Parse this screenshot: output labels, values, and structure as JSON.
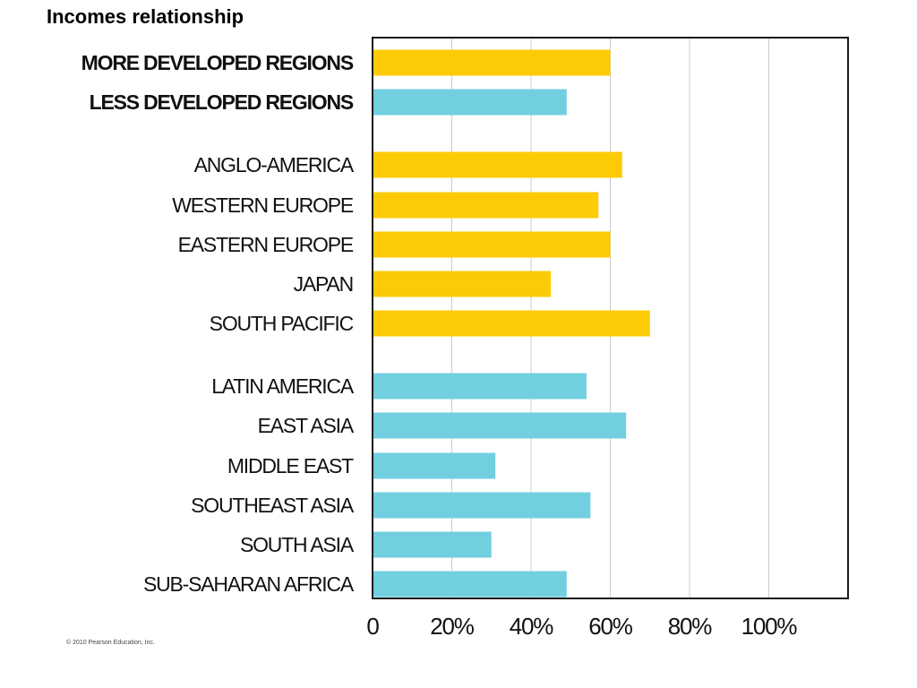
{
  "page": {
    "title": "Incomes relationship",
    "copyright": "© 2010 Pearson Education, Inc."
  },
  "chart_data": {
    "type": "bar",
    "orientation": "horizontal",
    "title": "",
    "xlabel": "",
    "ylabel": "",
    "xlim": [
      0,
      120
    ],
    "x_ticks": [
      {
        "value": 0,
        "label": "0"
      },
      {
        "value": 20,
        "label": "20%"
      },
      {
        "value": 40,
        "label": "40%"
      },
      {
        "value": 60,
        "label": "60%"
      },
      {
        "value": 80,
        "label": "80%"
      },
      {
        "value": 100,
        "label": "100%"
      }
    ],
    "grid": "vertical",
    "legend": "none",
    "colors": {
      "more_developed": "#FCCB06",
      "less_developed": "#72CFE0",
      "frame": "#1a1a1a",
      "grid": "#cccccc"
    },
    "categories": [
      {
        "label": "MORE DEVELOPED REGIONS",
        "value": 60,
        "group": "more_developed",
        "bold": true
      },
      {
        "label": "LESS DEVELOPED REGIONS",
        "value": 49,
        "group": "less_developed",
        "bold": true
      },
      {
        "label": "ANGLO-AMERICA",
        "value": 63,
        "group": "more_developed",
        "bold": false
      },
      {
        "label": "WESTERN EUROPE",
        "value": 57,
        "group": "more_developed",
        "bold": false
      },
      {
        "label": "EASTERN EUROPE",
        "value": 60,
        "group": "more_developed",
        "bold": false
      },
      {
        "label": "JAPAN",
        "value": 45,
        "group": "more_developed",
        "bold": false
      },
      {
        "label": "SOUTH PACIFIC",
        "value": 70,
        "group": "more_developed",
        "bold": false
      },
      {
        "label": "LATIN AMERICA",
        "value": 54,
        "group": "less_developed",
        "bold": false
      },
      {
        "label": "EAST ASIA",
        "value": 64,
        "group": "less_developed",
        "bold": false
      },
      {
        "label": "MIDDLE EAST",
        "value": 31,
        "group": "less_developed",
        "bold": false
      },
      {
        "label": "SOUTHEAST ASIA",
        "value": 55,
        "group": "less_developed",
        "bold": false
      },
      {
        "label": "SOUTH ASIA",
        "value": 30,
        "group": "less_developed",
        "bold": false
      },
      {
        "label": "SUB-SAHARAN AFRICA",
        "value": 49,
        "group": "less_developed",
        "bold": false
      }
    ]
  }
}
